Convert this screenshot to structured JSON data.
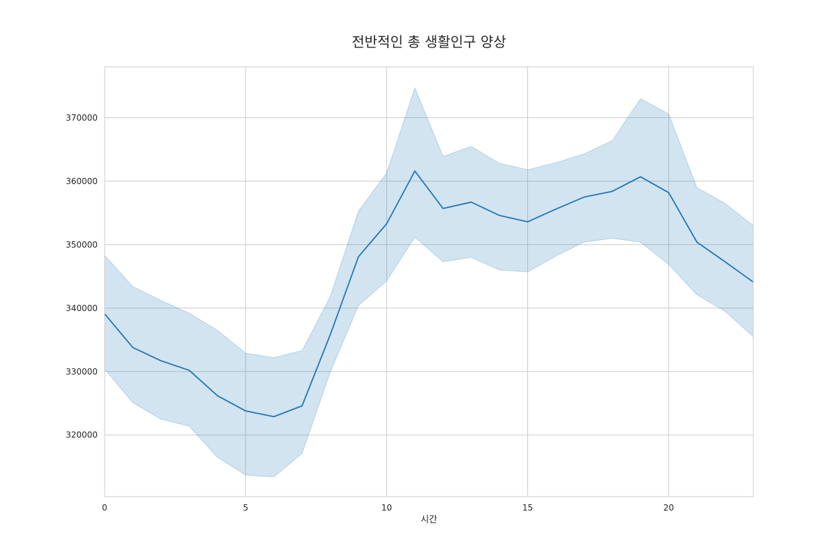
{
  "chart_data": {
    "type": "line",
    "title": "전반적인 총 생활인구 양상",
    "xlabel": "시간",
    "ylabel": "",
    "x": [
      0,
      1,
      2,
      3,
      4,
      5,
      6,
      7,
      8,
      9,
      10,
      11,
      12,
      13,
      14,
      15,
      16,
      17,
      18,
      19,
      20,
      21,
      22,
      23
    ],
    "series": [
      {
        "values": [
          339100,
          333800,
          331700,
          330200,
          326200,
          323800,
          322900,
          324600,
          335800,
          348100,
          353300,
          361600,
          355700,
          356700,
          354600,
          353600,
          355600,
          357500,
          358400,
          360700,
          358200,
          350400,
          347300,
          344100
        ],
        "ci_upper": [
          348300,
          343400,
          341200,
          339200,
          336500,
          332900,
          332200,
          333300,
          341800,
          355300,
          361300,
          374700,
          363900,
          365500,
          362800,
          361800,
          362900,
          364300,
          366400,
          373000,
          370600,
          359000,
          356500,
          353000
        ],
        "ci_lower": [
          330400,
          325100,
          322500,
          321400,
          316500,
          313700,
          313400,
          317100,
          329900,
          340400,
          344300,
          351200,
          347300,
          348000,
          346000,
          345700,
          348200,
          350400,
          351000,
          350400,
          346900,
          342100,
          339500,
          335500
        ]
      }
    ],
    "xlim": [
      0,
      23
    ],
    "ylim": [
      310300,
      378000
    ],
    "xticks": [
      "0",
      "5",
      "10",
      "15",
      "20"
    ],
    "yticks": [
      "320000",
      "330000",
      "340000",
      "350000",
      "360000",
      "370000"
    ],
    "grid": true,
    "colors": {
      "line": "#1f77b4",
      "band": "#1f77b4",
      "grid": "#cccccc"
    }
  }
}
